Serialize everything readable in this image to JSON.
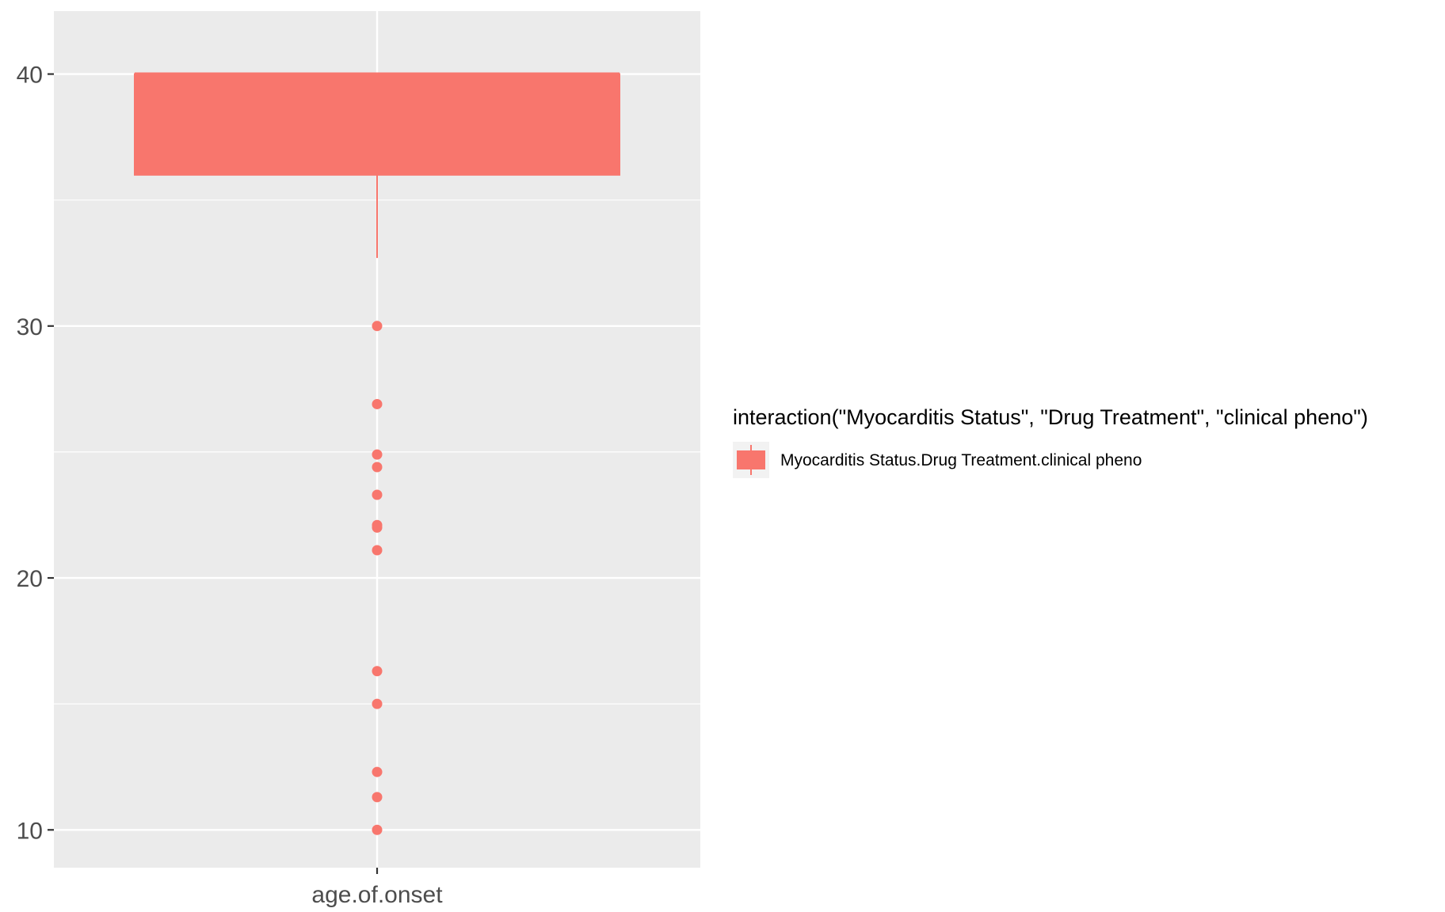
{
  "chart_data": {
    "type": "boxplot",
    "categories": [
      "age.of.onset"
    ],
    "xlabel": "",
    "ylabel": "",
    "ylim": [
      8.5,
      42.5
    ],
    "yticks": [
      10,
      20,
      30,
      40
    ],
    "grid": true,
    "legend_position": "right",
    "colors": {
      "fill": "#F8766D",
      "panel": "#EBEBEB",
      "grid": "#FFFFFF"
    },
    "legend": {
      "title": "interaction(\"Myocarditis Status\", \"Drug Treatment\", \"clinical pheno\")",
      "entries": [
        "Myocarditis Status.Drug Treatment.clinical pheno"
      ]
    },
    "series": [
      {
        "category": "age.of.onset",
        "median": 40,
        "q1": 36,
        "q3": 40,
        "whisker_low": 32.7,
        "whisker_high": 40,
        "outliers": [
          30,
          26.9,
          24.9,
          24.4,
          23.3,
          22.1,
          22.0,
          21.1,
          16.3,
          15.0,
          12.3,
          11.3,
          10.0
        ]
      }
    ]
  }
}
